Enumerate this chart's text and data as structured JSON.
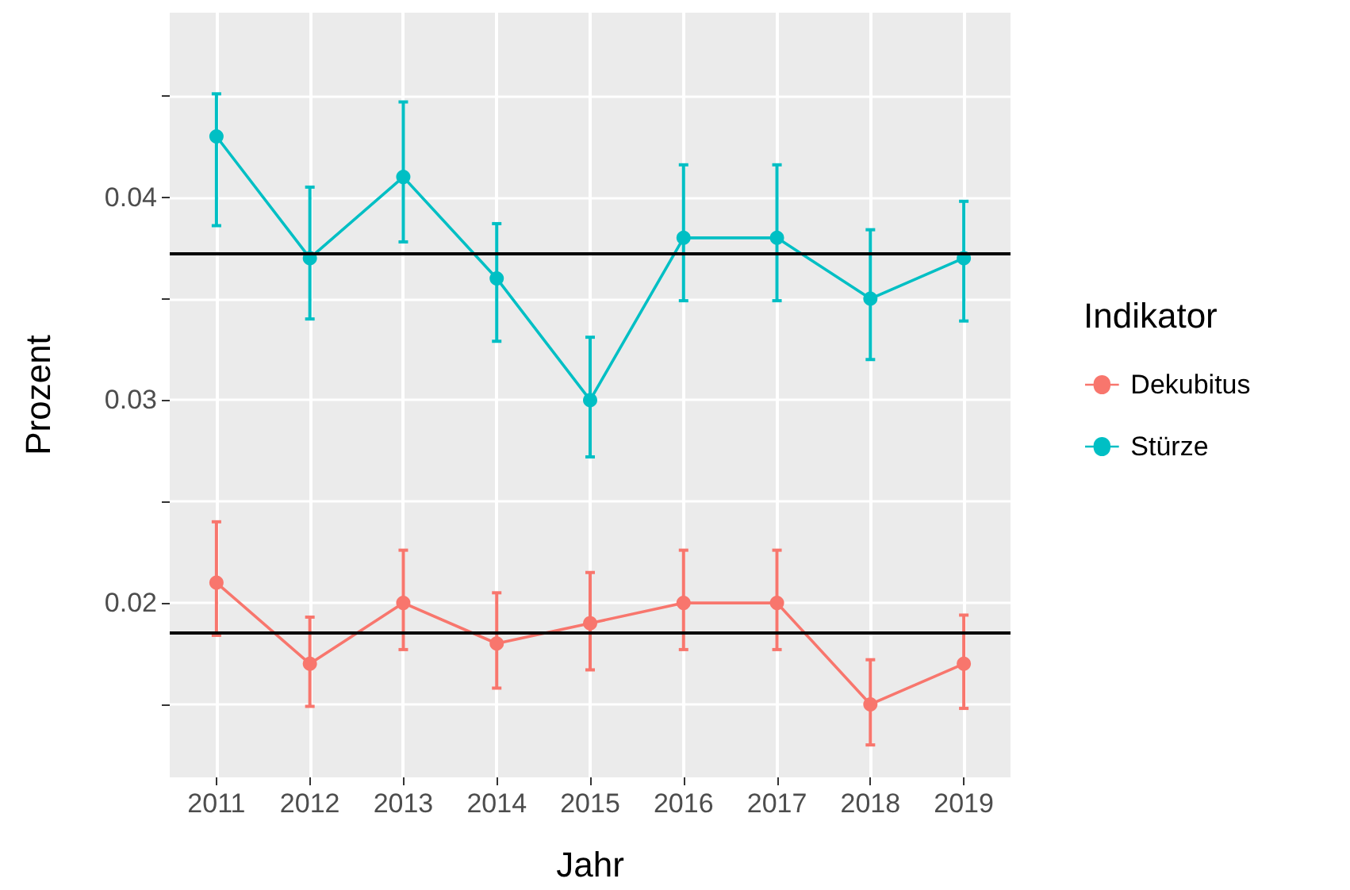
{
  "chart_data": {
    "type": "line",
    "xlabel": "Jahr",
    "ylabel": "Prozent",
    "legend_title": "Indikator",
    "categories": [
      "2011",
      "2012",
      "2013",
      "2014",
      "2015",
      "2016",
      "2017",
      "2018",
      "2019"
    ],
    "series": [
      {
        "name": "Dekubitus",
        "color": "#f8766d",
        "values": [
          0.021,
          0.017,
          0.02,
          0.018,
          0.019,
          0.02,
          0.02,
          0.015,
          0.017
        ],
        "errors": [
          [
            0.0184,
            0.024
          ],
          [
            0.0149,
            0.0193
          ],
          [
            0.0177,
            0.0226
          ],
          [
            0.0158,
            0.0205
          ],
          [
            0.0167,
            0.0215
          ],
          [
            0.0177,
            0.0226
          ],
          [
            0.0177,
            0.0226
          ],
          [
            0.013,
            0.0172
          ],
          [
            0.0148,
            0.0194
          ]
        ]
      },
      {
        "name": "Stürze",
        "color": "#00bfc4",
        "values": [
          0.043,
          0.037,
          0.041,
          0.036,
          0.03,
          0.038,
          0.038,
          0.035,
          0.037
        ],
        "errors": [
          [
            0.0386,
            0.0451
          ],
          [
            0.034,
            0.0405
          ],
          [
            0.0378,
            0.0447
          ],
          [
            0.0329,
            0.0387
          ],
          [
            0.0272,
            0.0331
          ],
          [
            0.0349,
            0.0416
          ],
          [
            0.0349,
            0.0416
          ],
          [
            0.032,
            0.0384
          ],
          [
            0.0339,
            0.0398
          ]
        ]
      }
    ],
    "ref_lines": [
      {
        "axis": "y",
        "value": 0.0372,
        "color": "#000000"
      },
      {
        "axis": "y",
        "value": 0.0185,
        "color": "#000000"
      }
    ],
    "ylim": [
      0.0114,
      0.0491
    ],
    "yticks": [
      {
        "value": 0.015,
        "label": null
      },
      {
        "value": 0.02,
        "label": "0.02"
      },
      {
        "value": 0.025,
        "label": null
      },
      {
        "value": 0.03,
        "label": "0.03"
      },
      {
        "value": 0.035,
        "label": null
      },
      {
        "value": 0.04,
        "label": "0.04"
      },
      {
        "value": 0.045,
        "label": null
      }
    ],
    "grid": true,
    "legend": "right",
    "marker": "circle",
    "line_style": "solid"
  }
}
